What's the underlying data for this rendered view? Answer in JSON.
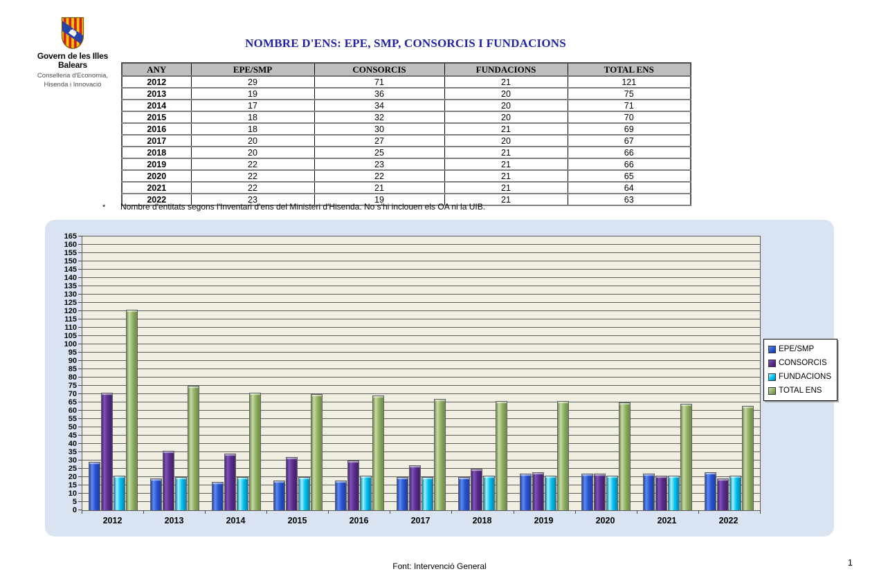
{
  "logo": {
    "org": "Govern de les Illes Balears",
    "dept_line1": "Conselleria d'Economia,",
    "dept_line2": "Hisenda i Innovació"
  },
  "title": "NOMBRE D'ENS: EPE, SMP, CONSORCIS I FUNDACIONS",
  "table": {
    "headers": [
      "ANY",
      "EPE/SMP",
      "CONSORCIS",
      "FUNDACIONS",
      "TOTAL ENS"
    ],
    "rows": [
      [
        "2012",
        "29",
        "71",
        "21",
        "121"
      ],
      [
        "2013",
        "19",
        "36",
        "20",
        "75"
      ],
      [
        "2014",
        "17",
        "34",
        "20",
        "71"
      ],
      [
        "2015",
        "18",
        "32",
        "20",
        "70"
      ],
      [
        "2016",
        "18",
        "30",
        "21",
        "69"
      ],
      [
        "2017",
        "20",
        "27",
        "20",
        "67"
      ],
      [
        "2018",
        "20",
        "25",
        "21",
        "66"
      ],
      [
        "2019",
        "22",
        "23",
        "21",
        "66"
      ],
      [
        "2020",
        "22",
        "22",
        "21",
        "65"
      ],
      [
        "2021",
        "22",
        "21",
        "21",
        "64"
      ],
      [
        "2022",
        "23",
        "19",
        "21",
        "63"
      ]
    ]
  },
  "footnote": {
    "marker": "*",
    "text": "Nombre d'entitats segons l'Inventari d'ens del Ministeri d'Hisenda. No s'hi inclouen els OA ni la UIB."
  },
  "chart_data": {
    "type": "bar",
    "categories": [
      "2012",
      "2013",
      "2014",
      "2015",
      "2016",
      "2017",
      "2018",
      "2019",
      "2020",
      "2021",
      "2022"
    ],
    "series": [
      {
        "name": "EPE/SMP",
        "values": [
          29,
          19,
          17,
          18,
          18,
          20,
          20,
          22,
          22,
          22,
          23
        ],
        "color": "#2B55CE",
        "color_light": "#5E8CF2",
        "color_dark": "#1B3A9E"
      },
      {
        "name": "CONSORCIS",
        "values": [
          71,
          36,
          34,
          32,
          30,
          27,
          25,
          23,
          22,
          21,
          19
        ],
        "color": "#5A2D8C",
        "color_light": "#8055B8",
        "color_dark": "#3E1C66"
      },
      {
        "name": "FUNDACIONS",
        "values": [
          21,
          20,
          20,
          20,
          21,
          20,
          21,
          21,
          21,
          21,
          21
        ],
        "color": "#00C4EE",
        "color_light": "#A8F0FF",
        "color_dark": "#0080B0"
      },
      {
        "name": "TOTAL ENS",
        "values": [
          121,
          75,
          71,
          70,
          69,
          67,
          66,
          66,
          65,
          64,
          63
        ],
        "color": "#92B164",
        "color_light": "#C8DCA8",
        "color_dark": "#6A8747"
      }
    ],
    "title": "",
    "xlabel": "",
    "ylabel": "",
    "ylim": [
      0,
      165
    ],
    "ytick_step": 5,
    "grid": true,
    "legend_position": "right",
    "plot_background": "#F0EFE1",
    "panel_background": "#D9E3F1"
  },
  "footer": {
    "source": "Font: Intervenció General",
    "page": "1"
  }
}
